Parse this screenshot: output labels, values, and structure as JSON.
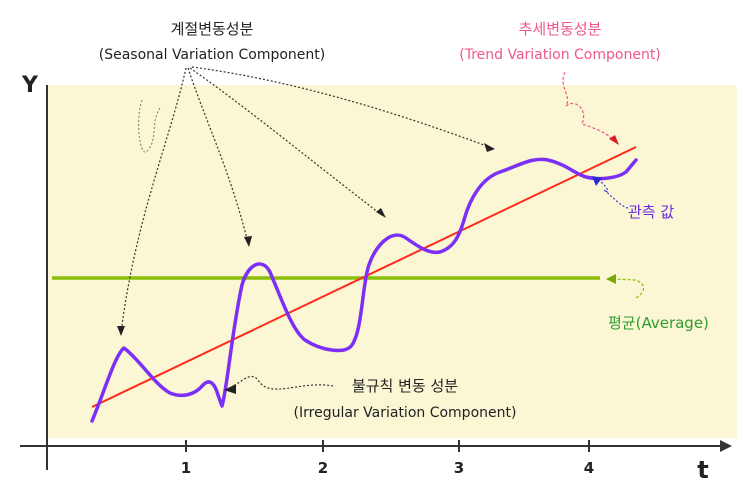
{
  "axes": {
    "y_label": "Y",
    "t_label": "t",
    "tick_labels": [
      "1",
      "2",
      "3",
      "4"
    ]
  },
  "annotations": {
    "seasonal": {
      "title": "계절변동성분",
      "subtitle": "(Seasonal Variation Component)"
    },
    "trend": {
      "title": "추세변동성분",
      "subtitle": "(Trend Variation Component)"
    },
    "irregular": {
      "title": "불규칙 변동 성분",
      "subtitle": "(Irregular Variation Component)"
    },
    "observed": "관측 값",
    "average": "평균(Average)"
  },
  "colors": {
    "plot_background": "#fbf6d3",
    "observed_line": "#7b2ff7",
    "trend_line": "#ff2a1a",
    "average_line": "#8cbf0a",
    "seasonal_text": "#222222",
    "trend_text": "#f0568c",
    "observed_text": "#6a2be0",
    "average_text": "#2e9e2e",
    "irregular_text": "#222222"
  }
}
